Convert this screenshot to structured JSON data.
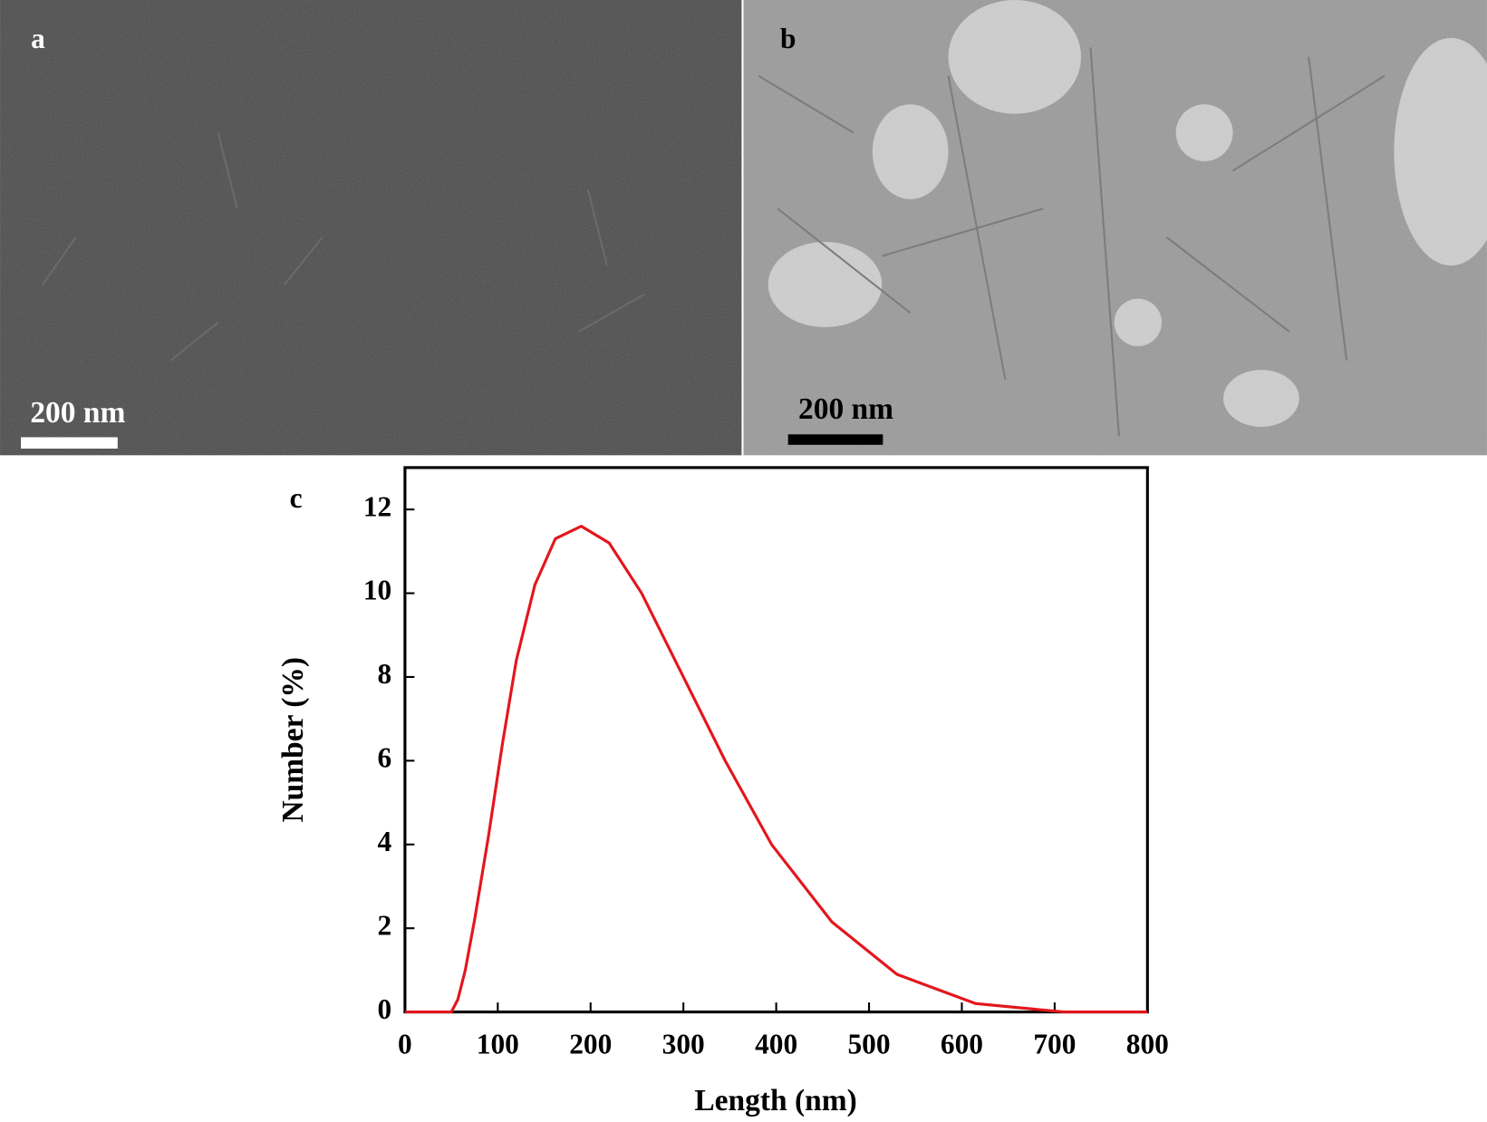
{
  "panels": [
    {
      "label": "a",
      "scale_bar": "200 nm"
    },
    {
      "label": "b",
      "scale_bar": "200 nm"
    }
  ],
  "chart_data": {
    "type": "line",
    "panel_label": "c",
    "x_label": "Length (nm)",
    "y_label": "Number (%)",
    "x": [
      0,
      50,
      57,
      65,
      75,
      90,
      105,
      120,
      140,
      162,
      190,
      220,
      255,
      300,
      345,
      395,
      460,
      530,
      615,
      710,
      800
    ],
    "values": [
      0,
      0,
      0.3,
      1,
      2.2,
      4.2,
      6.4,
      8.4,
      10.2,
      11.3,
      11.6,
      11.2,
      10,
      8,
      6,
      4,
      2.15,
      0.9,
      0.2,
      0,
      0
    ],
    "color": "#e3161d",
    "xlim": [
      0,
      800
    ],
    "xticks": [
      0,
      100,
      200,
      300,
      400,
      500,
      600,
      700,
      800
    ],
    "ylim": [
      0,
      13
    ],
    "yticks": [
      0,
      2,
      4,
      6,
      8,
      10,
      12
    ]
  }
}
